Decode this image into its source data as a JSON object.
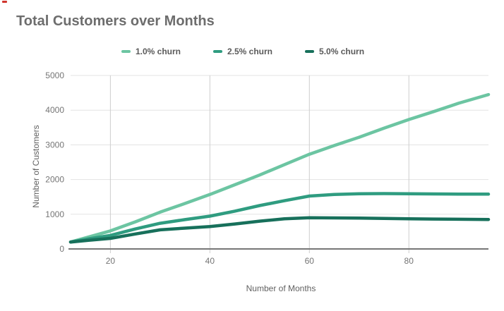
{
  "page": {
    "background": "#ffffff",
    "red_corner_mark_color": "#d0342c"
  },
  "chart_data": {
    "type": "line",
    "title": "Total Customers over Months",
    "xlabel": "Number of Months",
    "ylabel": "Number of Customers",
    "xlim": [
      12,
      96
    ],
    "ylim": [
      0,
      5000
    ],
    "x_ticks": [
      20,
      40,
      60,
      80
    ],
    "y_ticks": [
      0,
      1000,
      2000,
      3000,
      4000,
      5000
    ],
    "grid": true,
    "legend_position": "top-center",
    "colors": {
      "title_text": "#6d6d6d",
      "tick_text": "#757575",
      "axis_title_text": "#616161",
      "h_gridline": "#e3e3e3",
      "v_gridline": "#cdcdcd",
      "axis_line": "#777777"
    },
    "x": [
      12,
      16,
      20,
      25,
      30,
      35,
      40,
      45,
      50,
      55,
      60,
      65,
      70,
      75,
      80,
      85,
      90,
      96
    ],
    "series": [
      {
        "name": "1.0% churn",
        "color": "#6cc5a2",
        "values": [
          200,
          360,
          520,
          780,
          1060,
          1310,
          1570,
          1850,
          2130,
          2430,
          2730,
          2980,
          3220,
          3480,
          3730,
          3960,
          4200,
          4450
        ]
      },
      {
        "name": "2.5% churn",
        "color": "#2f9c80",
        "values": [
          200,
          300,
          390,
          575,
          740,
          845,
          945,
          1090,
          1250,
          1390,
          1525,
          1570,
          1590,
          1595,
          1590,
          1585,
          1580,
          1580
        ]
      },
      {
        "name": "5.0% churn",
        "color": "#17705b",
        "values": [
          200,
          255,
          305,
          430,
          550,
          600,
          645,
          720,
          800,
          870,
          900,
          895,
          890,
          880,
          870,
          862,
          855,
          850
        ]
      }
    ]
  }
}
